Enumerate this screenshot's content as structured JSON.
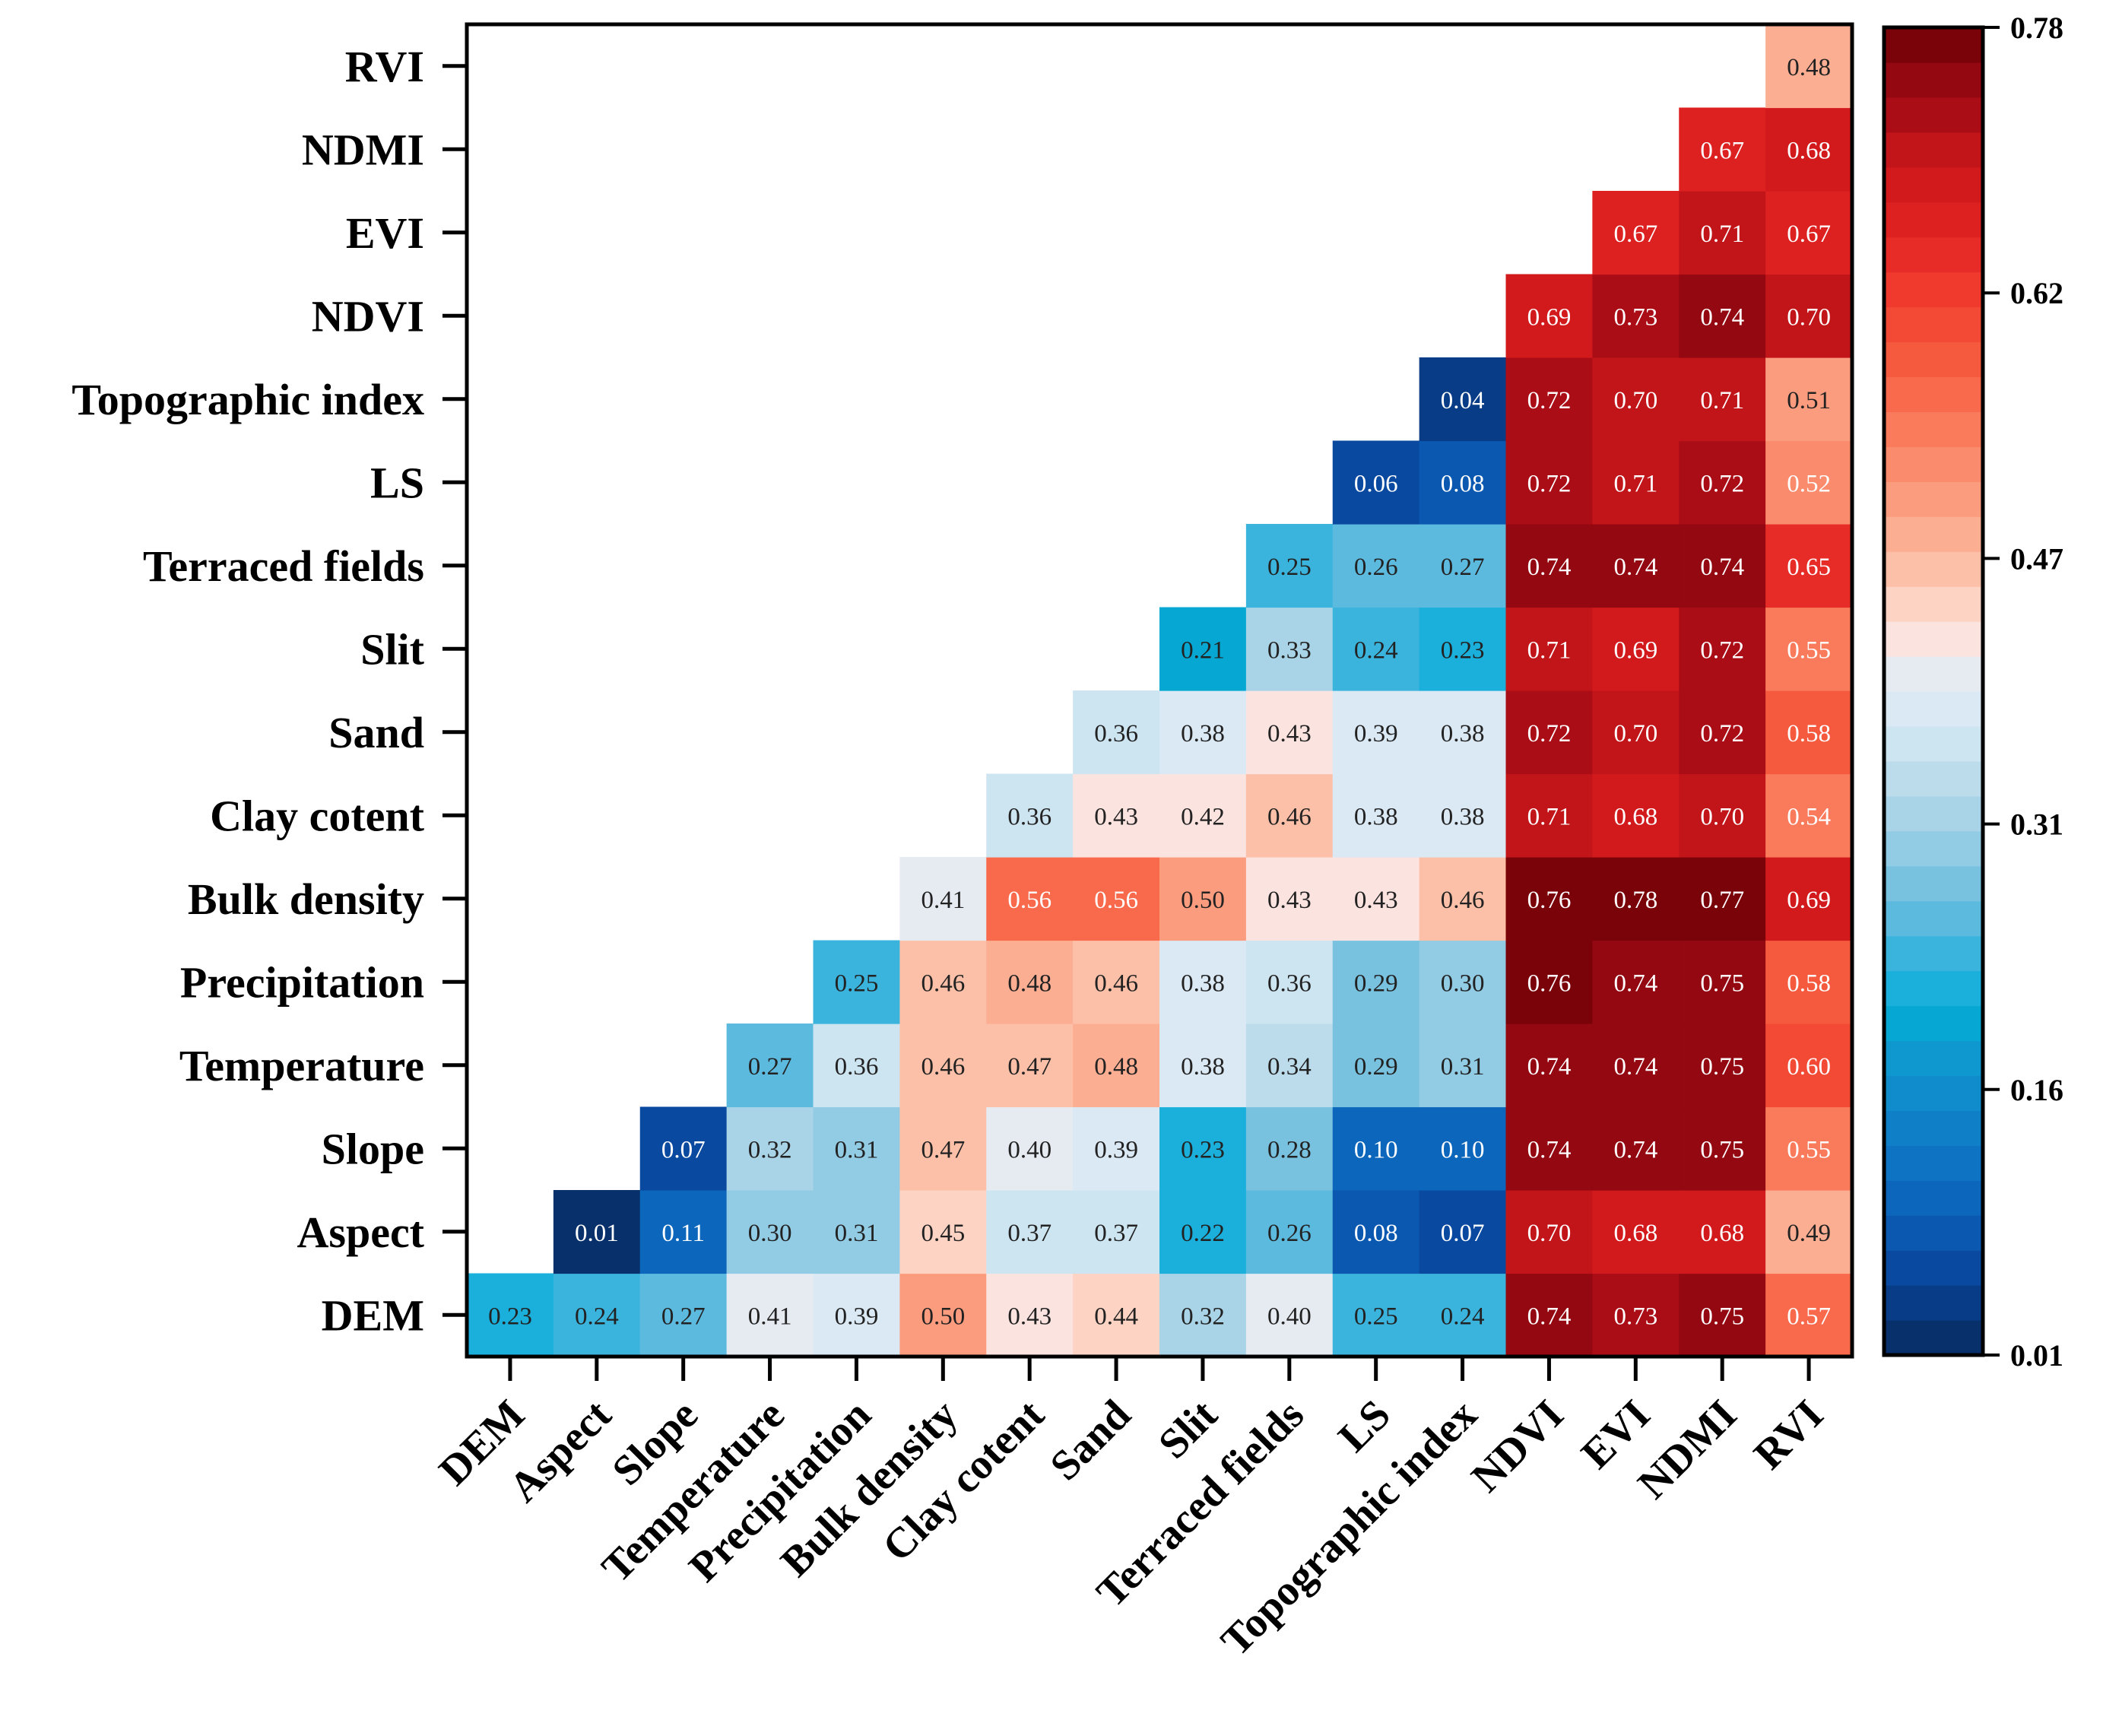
{
  "chart_data": {
    "type": "heatmap",
    "title": "",
    "xlabel": "",
    "ylabel": "",
    "variables": [
      "DEM",
      "Aspect",
      "Slope",
      "Temperature",
      "Precipitation",
      "Bulk density",
      "Clay cotent",
      "Sand",
      "Slit",
      "Terraced fields",
      "LS",
      "Topographic index",
      "NDVI",
      "EVI",
      "NDMI",
      "RVI"
    ],
    "values": [
      [
        0.23
      ],
      [
        0.24,
        0.01
      ],
      [
        0.27,
        0.11,
        0.07
      ],
      [
        0.41,
        0.3,
        0.32,
        0.27
      ],
      [
        0.39,
        0.31,
        0.31,
        0.36,
        0.25
      ],
      [
        0.5,
        0.45,
        0.47,
        0.46,
        0.46,
        0.41
      ],
      [
        0.43,
        0.37,
        0.4,
        0.47,
        0.48,
        0.56,
        0.36
      ],
      [
        0.44,
        0.37,
        0.39,
        0.48,
        0.46,
        0.56,
        0.43,
        0.36
      ],
      [
        0.32,
        0.22,
        0.23,
        0.38,
        0.38,
        0.5,
        0.42,
        0.38,
        0.21
      ],
      [
        0.4,
        0.26,
        0.28,
        0.34,
        0.36,
        0.43,
        0.46,
        0.43,
        0.33,
        0.25
      ],
      [
        0.25,
        0.08,
        0.1,
        0.29,
        0.29,
        0.43,
        0.38,
        0.39,
        0.24,
        0.26,
        0.06
      ],
      [
        0.24,
        0.07,
        0.1,
        0.31,
        0.3,
        0.46,
        0.38,
        0.38,
        0.23,
        0.27,
        0.08,
        0.04
      ],
      [
        0.74,
        0.7,
        0.74,
        0.74,
        0.76,
        0.76,
        0.71,
        0.72,
        0.71,
        0.74,
        0.72,
        0.72,
        0.69
      ],
      [
        0.73,
        0.68,
        0.74,
        0.74,
        0.74,
        0.78,
        0.68,
        0.7,
        0.69,
        0.74,
        0.71,
        0.7,
        0.73,
        0.67
      ],
      [
        0.75,
        0.68,
        0.75,
        0.75,
        0.75,
        0.77,
        0.7,
        0.72,
        0.72,
        0.74,
        0.72,
        0.71,
        0.74,
        0.71,
        0.67
      ],
      [
        0.57,
        0.49,
        0.55,
        0.6,
        0.58,
        0.69,
        0.54,
        0.58,
        0.55,
        0.65,
        0.52,
        0.51,
        0.7,
        0.67,
        0.68,
        0.48
      ]
    ],
    "colorbar": {
      "min": 0.01,
      "max": 0.78,
      "ticks": [
        "0.01",
        "0.16",
        "0.31",
        "0.47",
        "0.62",
        "0.78"
      ],
      "colors": [
        "#08306b",
        "#083c86",
        "#09499f",
        "#0b58b0",
        "#0c66bb",
        "#0e73c2",
        "#0f80c8",
        "#108ccd",
        "#0f98d0",
        "#06a8d3",
        "#1ab0db",
        "#3ab4dd",
        "#5dbadf",
        "#78c2e0",
        "#92cbe4",
        "#a9d4e8",
        "#bcdcec",
        "#cde4f1",
        "#dbe9f4",
        "#e6ebf2",
        "#fbe3e0",
        "#fdd3c4",
        "#fcc0a8",
        "#fcae92",
        "#fc9c7f",
        "#fb8b6d",
        "#fa7a5c",
        "#f9694b",
        "#f5593e",
        "#f34a36",
        "#f03a2e",
        "#e72b27",
        "#dd2121",
        "#d21a1d",
        "#c2151a",
        "#ab0d17",
        "#930811",
        "#7a0209"
      ]
    },
    "legend": "colorbar right",
    "grid": false
  }
}
